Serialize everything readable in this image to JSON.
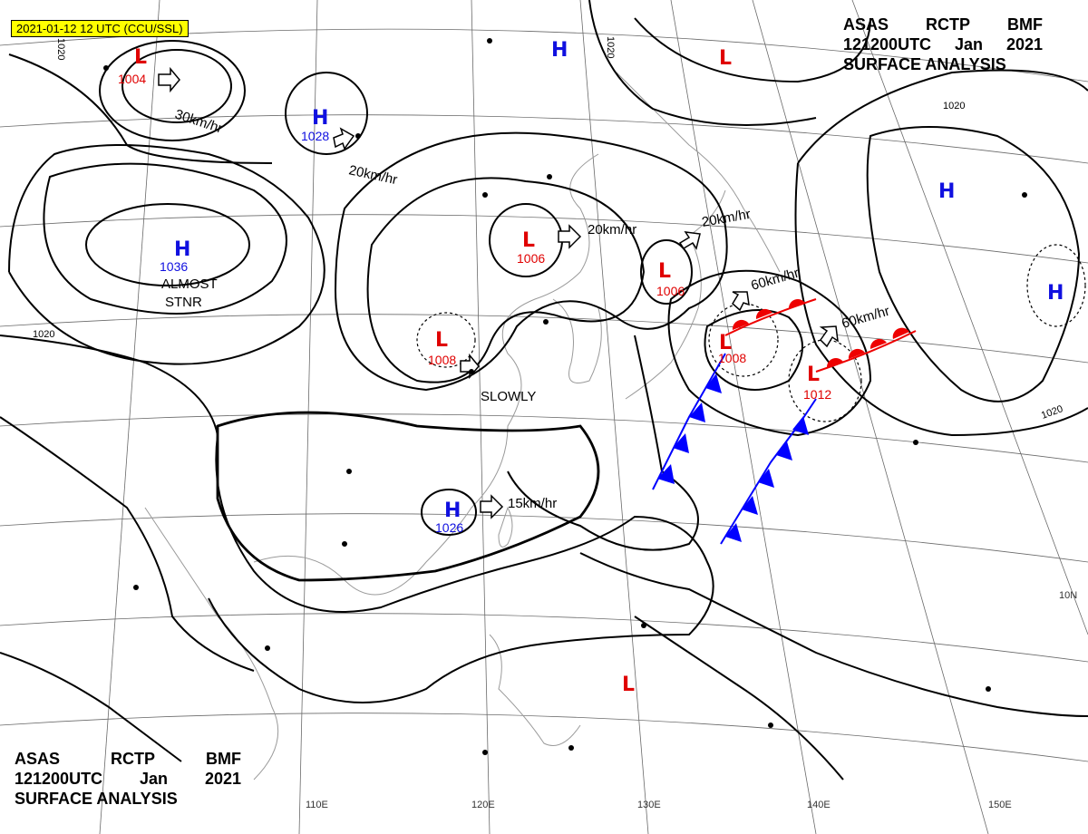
{
  "stamp": "2021-01-12 12 UTC (CCU/SSL)",
  "header": {
    "line1": [
      "ASAS",
      "RCTP",
      "BMF"
    ],
    "line2": [
      "121200UTC",
      "Jan",
      "2021"
    ],
    "line3": "SURFACE ANALYSIS"
  },
  "footer": {
    "line1": [
      "ASAS",
      "RCTP",
      "BMF"
    ],
    "line2": [
      "121200UTC",
      "Jan",
      "2021"
    ],
    "line3": "SURFACE ANALYSIS"
  },
  "colors": {
    "high": "#1010e0",
    "low": "#e00000",
    "isobar": "#000000",
    "cold_front": "#0000ff",
    "warm_front": "#ee0000",
    "stamp_bg": "#ffff00"
  },
  "pressure_systems": [
    {
      "type": "L",
      "value": "1004"
    },
    {
      "type": "H",
      "value": ""
    },
    {
      "type": "H",
      "value": "1028"
    },
    {
      "type": "L",
      "value": ""
    },
    {
      "type": "H",
      "value": "1036"
    },
    {
      "type": "L",
      "value": "1006"
    },
    {
      "type": "L",
      "value": "1006"
    },
    {
      "type": "L",
      "value": "1008"
    },
    {
      "type": "L",
      "value": "1008"
    },
    {
      "type": "L",
      "value": "1012"
    },
    {
      "type": "H",
      "value": ""
    },
    {
      "type": "H",
      "value": ""
    },
    {
      "type": "H",
      "value": "1026"
    },
    {
      "type": "L",
      "value": ""
    }
  ],
  "motion_labels": [
    {
      "text": "30km/hr"
    },
    {
      "text": "20km/hr"
    },
    {
      "text": "20km/hr"
    },
    {
      "text": "20km/hr"
    },
    {
      "text": "60km/hr"
    },
    {
      "text": "60km/hr"
    },
    {
      "text": "SLOWLY"
    },
    {
      "text": "15km/hr"
    },
    {
      "text": "ALMOST"
    },
    {
      "text": "STNR"
    }
  ],
  "isobar_labels": [
    "1020",
    "1020",
    "1020",
    "1020",
    "1020"
  ],
  "longitude_labels": [
    "110E",
    "120E",
    "130E",
    "140E",
    "150E"
  ],
  "latitude_labels": [
    "10N"
  ]
}
